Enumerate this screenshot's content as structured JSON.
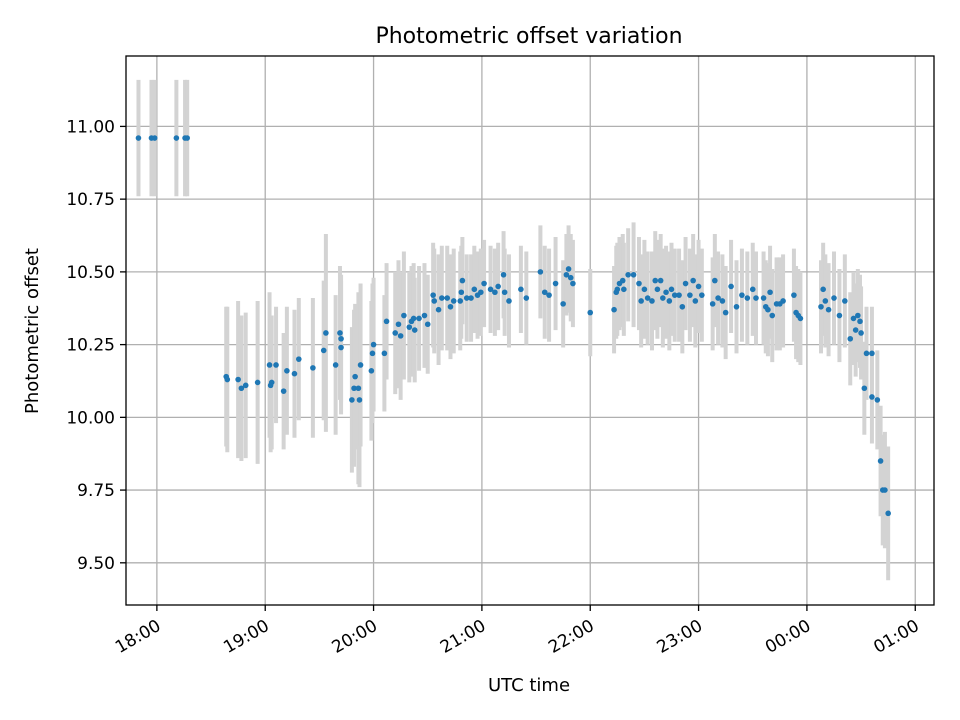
{
  "chart_data": {
    "type": "scatter",
    "title": "Photometric offset variation",
    "xlabel": "UTC time",
    "ylabel": "Photometric offset",
    "x_unit": "UTC time of day (hours, continuing past midnight)",
    "xlim": [
      17.715,
      25.173
    ],
    "ylim": [
      9.355,
      11.242
    ],
    "grid": true,
    "error_bar_color": "#d3d3d3",
    "point_color": "#1f77b4",
    "x_ticks": [
      {
        "value": 18,
        "label": "18:00"
      },
      {
        "value": 19,
        "label": "19:00"
      },
      {
        "value": 20,
        "label": "20:00"
      },
      {
        "value": 21,
        "label": "21:00"
      },
      {
        "value": 22,
        "label": "22:00"
      },
      {
        "value": 23,
        "label": "23:00"
      },
      {
        "value": 24,
        "label": "00:00"
      },
      {
        "value": 25,
        "label": "01:00"
      }
    ],
    "y_ticks": [
      {
        "value": 9.5,
        "label": "9.50"
      },
      {
        "value": 9.75,
        "label": "9.75"
      },
      {
        "value": 10.0,
        "label": "10.00"
      },
      {
        "value": 10.25,
        "label": "10.25"
      },
      {
        "value": 10.5,
        "label": "10.50"
      },
      {
        "value": 10.75,
        "label": "10.75"
      },
      {
        "value": 11.0,
        "label": "11.00"
      }
    ],
    "points": [
      [
        17.83,
        10.96,
        0.2
      ],
      [
        17.95,
        10.96,
        0.2
      ],
      [
        17.98,
        10.96,
        0.2
      ],
      [
        18.18,
        10.96,
        0.2
      ],
      [
        18.26,
        10.96,
        0.2
      ],
      [
        18.28,
        10.96,
        0.2
      ],
      [
        18.64,
        10.14,
        0.24
      ],
      [
        18.65,
        10.13,
        0.25
      ],
      [
        18.75,
        10.13,
        0.27
      ],
      [
        18.78,
        10.1,
        0.25
      ],
      [
        18.82,
        10.11,
        0.25
      ],
      [
        18.93,
        10.12,
        0.28
      ],
      [
        19.04,
        10.18,
        0.25
      ],
      [
        19.05,
        10.11,
        0.23
      ],
      [
        19.06,
        10.12,
        0.23
      ],
      [
        19.1,
        10.18,
        0.2
      ],
      [
        19.17,
        10.09,
        0.2
      ],
      [
        19.2,
        10.16,
        0.22
      ],
      [
        19.27,
        10.15,
        0.22
      ],
      [
        19.31,
        10.2,
        0.21
      ],
      [
        19.44,
        10.17,
        0.24
      ],
      [
        19.54,
        10.23,
        0.24
      ],
      [
        19.56,
        10.29,
        0.34
      ],
      [
        19.65,
        10.18,
        0.24
      ],
      [
        19.69,
        10.29,
        0.23
      ],
      [
        19.7,
        10.27,
        0.22
      ],
      [
        19.7,
        10.24,
        0.23
      ],
      [
        19.8,
        10.06,
        0.25
      ],
      [
        19.82,
        10.1,
        0.27
      ],
      [
        19.83,
        10.14,
        0.25
      ],
      [
        19.86,
        10.1,
        0.33
      ],
      [
        19.87,
        10.06,
        0.3
      ],
      [
        19.88,
        10.18,
        0.28
      ],
      [
        19.98,
        10.16,
        0.24
      ],
      [
        19.99,
        10.22,
        0.24
      ],
      [
        20.0,
        10.25,
        0.23
      ],
      [
        20.1,
        10.22,
        0.2
      ],
      [
        20.12,
        10.33,
        0.2
      ],
      [
        20.2,
        10.29,
        0.21
      ],
      [
        20.23,
        10.32,
        0.22
      ],
      [
        20.25,
        10.28,
        0.22
      ],
      [
        20.28,
        10.35,
        0.22
      ],
      [
        20.33,
        10.31,
        0.19
      ],
      [
        20.35,
        10.33,
        0.19
      ],
      [
        20.37,
        10.34,
        0.19
      ],
      [
        20.38,
        10.3,
        0.18
      ],
      [
        20.42,
        10.34,
        0.18
      ],
      [
        20.47,
        10.35,
        0.18
      ],
      [
        20.5,
        10.32,
        0.17
      ],
      [
        20.55,
        10.42,
        0.18
      ],
      [
        20.56,
        10.4,
        0.18
      ],
      [
        20.6,
        10.37,
        0.19
      ],
      [
        20.63,
        10.41,
        0.18
      ],
      [
        20.68,
        10.41,
        0.18
      ],
      [
        20.71,
        10.38,
        0.18
      ],
      [
        20.74,
        10.4,
        0.18
      ],
      [
        20.8,
        10.4,
        0.17
      ],
      [
        20.81,
        10.43,
        0.16
      ],
      [
        20.82,
        10.47,
        0.15
      ],
      [
        20.86,
        10.41,
        0.15
      ],
      [
        20.9,
        10.41,
        0.15
      ],
      [
        20.93,
        10.44,
        0.15
      ],
      [
        20.96,
        10.42,
        0.15
      ],
      [
        20.99,
        10.43,
        0.15
      ],
      [
        21.02,
        10.46,
        0.15
      ],
      [
        21.08,
        10.44,
        0.15
      ],
      [
        21.12,
        10.43,
        0.15
      ],
      [
        21.15,
        10.45,
        0.15
      ],
      [
        21.2,
        10.49,
        0.15
      ],
      [
        21.21,
        10.43,
        0.15
      ],
      [
        21.25,
        10.4,
        0.16
      ],
      [
        21.36,
        10.44,
        0.15
      ],
      [
        21.41,
        10.41,
        0.16
      ],
      [
        21.54,
        10.5,
        0.16
      ],
      [
        21.58,
        10.43,
        0.16
      ],
      [
        21.62,
        10.42,
        0.16
      ],
      [
        21.68,
        10.46,
        0.16
      ],
      [
        21.75,
        10.39,
        0.15
      ],
      [
        21.78,
        10.49,
        0.14
      ],
      [
        21.8,
        10.51,
        0.15
      ],
      [
        21.82,
        10.48,
        0.15
      ],
      [
        21.84,
        10.46,
        0.15
      ],
      [
        22.0,
        10.36,
        0.15
      ],
      [
        22.22,
        10.37,
        0.15
      ],
      [
        22.24,
        10.43,
        0.16
      ],
      [
        22.25,
        10.44,
        0.16
      ],
      [
        22.27,
        10.46,
        0.16
      ],
      [
        22.3,
        10.47,
        0.16
      ],
      [
        22.31,
        10.44,
        0.16
      ],
      [
        22.35,
        10.49,
        0.16
      ],
      [
        22.4,
        10.49,
        0.18
      ],
      [
        22.45,
        10.46,
        0.16
      ],
      [
        22.47,
        10.4,
        0.16
      ],
      [
        22.5,
        10.44,
        0.17
      ],
      [
        22.53,
        10.41,
        0.16
      ],
      [
        22.57,
        10.4,
        0.17
      ],
      [
        22.6,
        10.47,
        0.17
      ],
      [
        22.62,
        10.44,
        0.17
      ],
      [
        22.65,
        10.47,
        0.16
      ],
      [
        22.67,
        10.41,
        0.17
      ],
      [
        22.7,
        10.43,
        0.16
      ],
      [
        22.73,
        10.4,
        0.17
      ],
      [
        22.75,
        10.44,
        0.16
      ],
      [
        22.78,
        10.42,
        0.16
      ],
      [
        22.82,
        10.42,
        0.16
      ],
      [
        22.85,
        10.38,
        0.16
      ],
      [
        22.88,
        10.46,
        0.16
      ],
      [
        22.92,
        10.42,
        0.16
      ],
      [
        22.95,
        10.47,
        0.16
      ],
      [
        22.97,
        10.4,
        0.16
      ],
      [
        23.0,
        10.45,
        0.16
      ],
      [
        23.03,
        10.42,
        0.16
      ],
      [
        23.13,
        10.39,
        0.16
      ],
      [
        23.15,
        10.47,
        0.16
      ],
      [
        23.18,
        10.41,
        0.16
      ],
      [
        23.22,
        10.4,
        0.16
      ],
      [
        23.25,
        10.36,
        0.16
      ],
      [
        23.3,
        10.45,
        0.16
      ],
      [
        23.35,
        10.38,
        0.16
      ],
      [
        23.4,
        10.42,
        0.16
      ],
      [
        23.45,
        10.41,
        0.16
      ],
      [
        23.5,
        10.44,
        0.16
      ],
      [
        23.53,
        10.41,
        0.16
      ],
      [
        23.6,
        10.41,
        0.16
      ],
      [
        23.62,
        10.38,
        0.16
      ],
      [
        23.64,
        10.37,
        0.16
      ],
      [
        23.66,
        10.43,
        0.16
      ],
      [
        23.68,
        10.35,
        0.16
      ],
      [
        23.72,
        10.39,
        0.16
      ],
      [
        23.75,
        10.39,
        0.16
      ],
      [
        23.78,
        10.4,
        0.16
      ],
      [
        23.88,
        10.42,
        0.16
      ],
      [
        23.9,
        10.36,
        0.16
      ],
      [
        23.92,
        10.35,
        0.16
      ],
      [
        23.94,
        10.34,
        0.16
      ],
      [
        24.13,
        10.38,
        0.16
      ],
      [
        24.15,
        10.44,
        0.16
      ],
      [
        24.17,
        10.4,
        0.16
      ],
      [
        24.2,
        10.37,
        0.16
      ],
      [
        24.25,
        10.41,
        0.16
      ],
      [
        24.3,
        10.35,
        0.16
      ],
      [
        24.35,
        10.4,
        0.16
      ],
      [
        24.4,
        10.27,
        0.16
      ],
      [
        24.43,
        10.34,
        0.16
      ],
      [
        24.45,
        10.3,
        0.16
      ],
      [
        24.47,
        10.35,
        0.16
      ],
      [
        24.49,
        10.33,
        0.16
      ],
      [
        24.5,
        10.29,
        0.16
      ],
      [
        24.53,
        10.1,
        0.16
      ],
      [
        24.55,
        10.22,
        0.16
      ],
      [
        24.6,
        10.22,
        0.16
      ],
      [
        24.6,
        10.07,
        0.16
      ],
      [
        24.65,
        10.06,
        0.17
      ],
      [
        24.68,
        9.85,
        0.19
      ],
      [
        24.7,
        9.75,
        0.19
      ],
      [
        24.72,
        9.75,
        0.2
      ],
      [
        24.75,
        9.67,
        0.23
      ]
    ]
  }
}
